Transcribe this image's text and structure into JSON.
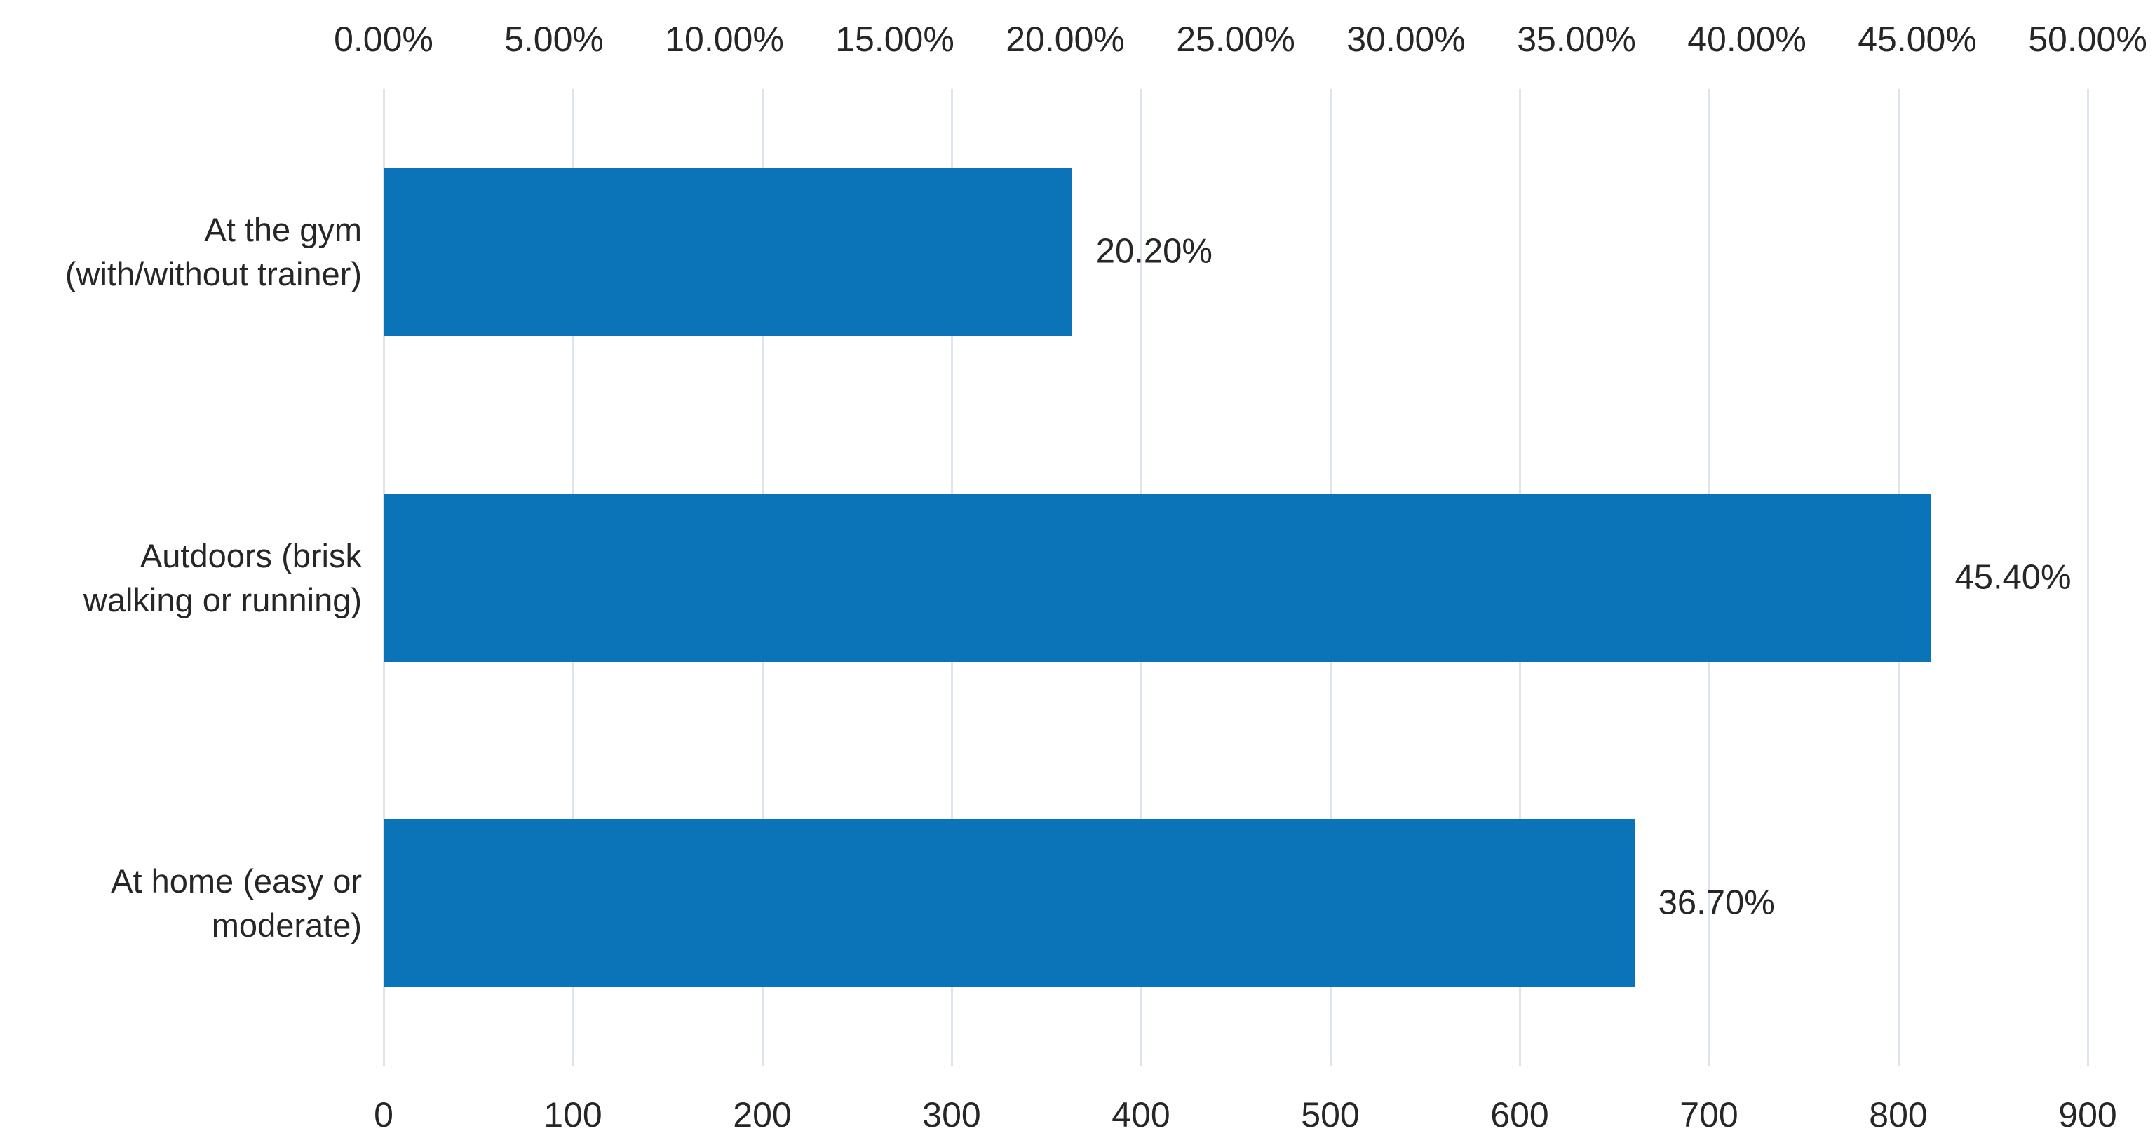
{
  "chart_data": {
    "type": "bar",
    "orientation": "horizontal",
    "title": "",
    "legend": "none",
    "grid": "vertical-gridlines-at-bottom-axis-ticks",
    "background_color": "#ffffff",
    "bar_color": "#0b74b8",
    "gridline_color": "#dde4ee",
    "text_color": "#262626",
    "categories": [
      "At the gym (with/without trainer)",
      "Autdoors (brisk walking or running)",
      "At home (easy or moderate)"
    ],
    "category_lines": [
      [
        "At the gym",
        "(with/without trainer)"
      ],
      [
        "Autdoors (brisk",
        "walking or running)"
      ],
      [
        "At home (easy or",
        "moderate)"
      ]
    ],
    "values_percent": [
      20.2,
      45.4,
      36.7
    ],
    "data_labels": [
      "20.20%",
      "45.40%",
      "36.70%"
    ],
    "approx_counts_from_bottom_axis": [
      364,
      817,
      661
    ],
    "top_axis": {
      "unit": "percent",
      "min": 0,
      "max": 50,
      "tick_step": 5,
      "tick_labels": [
        "0.00%",
        "5.00%",
        "10.00%",
        "15.00%",
        "20.00%",
        "25.00%",
        "30.00%",
        "35.00%",
        "40.00%",
        "45.00%",
        "50.00%"
      ]
    },
    "bottom_axis": {
      "unit": "count",
      "min": 0,
      "max": 900,
      "tick_step": 100,
      "tick_labels": [
        "0",
        "100",
        "200",
        "300",
        "400",
        "500",
        "600",
        "700",
        "800",
        "900"
      ]
    }
  }
}
